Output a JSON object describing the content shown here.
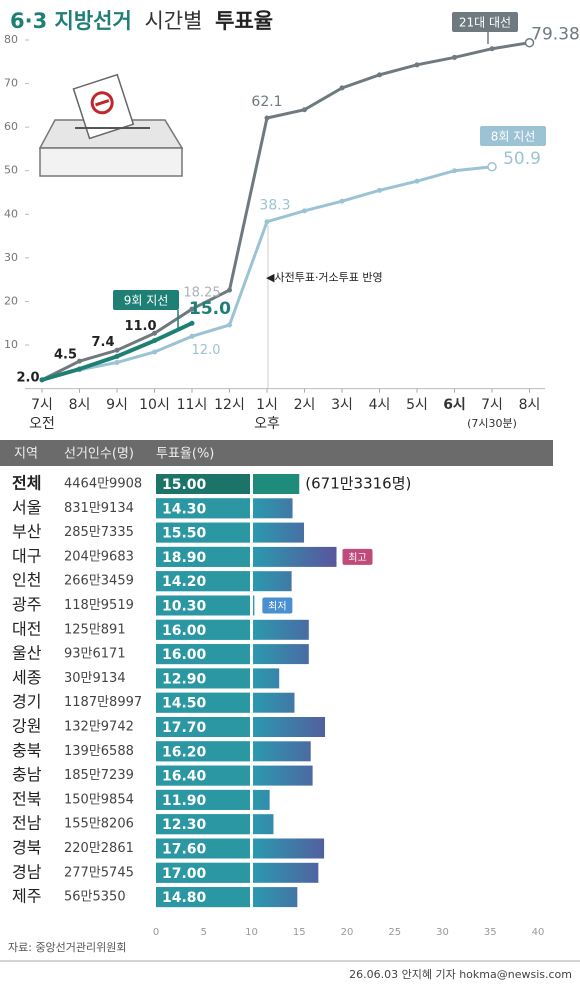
{
  "title_parts": [
    "6·3 지방선거",
    "시간별",
    "투표율"
  ],
  "chart_data": [
    {
      "type": "line",
      "categories": [
        "7시",
        "8시",
        "9시",
        "10시",
        "11시",
        "12시",
        "1시",
        "2시",
        "3시",
        "4시",
        "5시",
        "6시",
        "7시",
        "8시"
      ],
      "x_sublabels": [
        "오전",
        null,
        null,
        null,
        null,
        null,
        "오후",
        null,
        null,
        null,
        null,
        null,
        "(7시30분)",
        null
      ],
      "ylim": [
        0,
        80
      ],
      "yticks": [
        10,
        20,
        30,
        40,
        50,
        60,
        70,
        80
      ],
      "annotation": "◀사전투표·거소투표 반영",
      "series": [
        {
          "name": "21대 대선",
          "color": "#6e7a80",
          "values": [
            2.0,
            6.3,
            8.8,
            12.7,
            18.25,
            22.6,
            62.1,
            64.0,
            69.0,
            72.0,
            74.3,
            76.0,
            78.0,
            79.38
          ],
          "value_labels": [
            null,
            null,
            null,
            null,
            "18.25",
            null,
            "62.1",
            null,
            null,
            null,
            null,
            null,
            null,
            "79.38"
          ]
        },
        {
          "name": "8회 지선",
          "color": "#9cc3d3",
          "values": [
            2.0,
            4.3,
            6.0,
            8.4,
            12.0,
            14.6,
            38.3,
            40.8,
            43.0,
            45.5,
            47.6,
            50.0,
            50.9,
            null
          ],
          "value_labels": [
            null,
            null,
            null,
            null,
            "12.0",
            null,
            "38.3",
            null,
            null,
            null,
            null,
            null,
            "50.9",
            null
          ]
        },
        {
          "name": "9회 지선",
          "color": "#1e7f74",
          "values": [
            2.0,
            4.5,
            7.4,
            11.0,
            15.0,
            null,
            null,
            null,
            null,
            null,
            null,
            null,
            null,
            null
          ],
          "value_labels": [
            "2.0",
            "4.5",
            "7.4",
            "11.0",
            "15.0",
            null,
            null,
            null,
            null,
            null,
            null,
            null,
            null,
            null
          ]
        }
      ]
    },
    {
      "type": "bar",
      "columns": [
        "지역",
        "선거인수(명)",
        "투표율(%)"
      ],
      "categories": [
        "전체",
        "서울",
        "부산",
        "대구",
        "인천",
        "광주",
        "대전",
        "울산",
        "세종",
        "경기",
        "강원",
        "충북",
        "충남",
        "전북",
        "전남",
        "경북",
        "경남",
        "제주"
      ],
      "voters": [
        "4464만9908",
        "831만9134",
        "285만7335",
        "204만9683",
        "266만3459",
        "118만9519",
        "125만891",
        "93만6171",
        "30만9134",
        "1187만8997",
        "132만9742",
        "139만6588",
        "185만7239",
        "150만9854",
        "155만8206",
        "220만2861",
        "277만5745",
        "56만5350"
      ],
      "values": [
        15.0,
        14.3,
        15.5,
        18.9,
        14.2,
        10.3,
        16.0,
        16.0,
        12.9,
        14.5,
        17.7,
        16.2,
        16.4,
        11.9,
        12.3,
        17.6,
        17.0,
        14.8
      ],
      "value_labels": [
        "15.00",
        "14.30",
        "15.50",
        "18.90",
        "14.20",
        "10.30",
        "16.00",
        "16.00",
        "12.90",
        "14.50",
        "17.70",
        "16.20",
        "16.40",
        "11.90",
        "12.30",
        "17.60",
        "17.00",
        "14.80"
      ],
      "xlim": [
        0,
        40
      ],
      "xticks": [
        0,
        5,
        10,
        15,
        20,
        25,
        30,
        35,
        40
      ],
      "annotations": [
        {
          "category": "전체",
          "text": "(671만3316명)"
        },
        {
          "category": "대구",
          "text": "최고"
        },
        {
          "category": "광주",
          "text": "최저"
        }
      ]
    }
  ],
  "source": "자료: 중앙선거관리위원회",
  "credit": "26.06.03 안지혜 기자 hokma@newsis.com"
}
